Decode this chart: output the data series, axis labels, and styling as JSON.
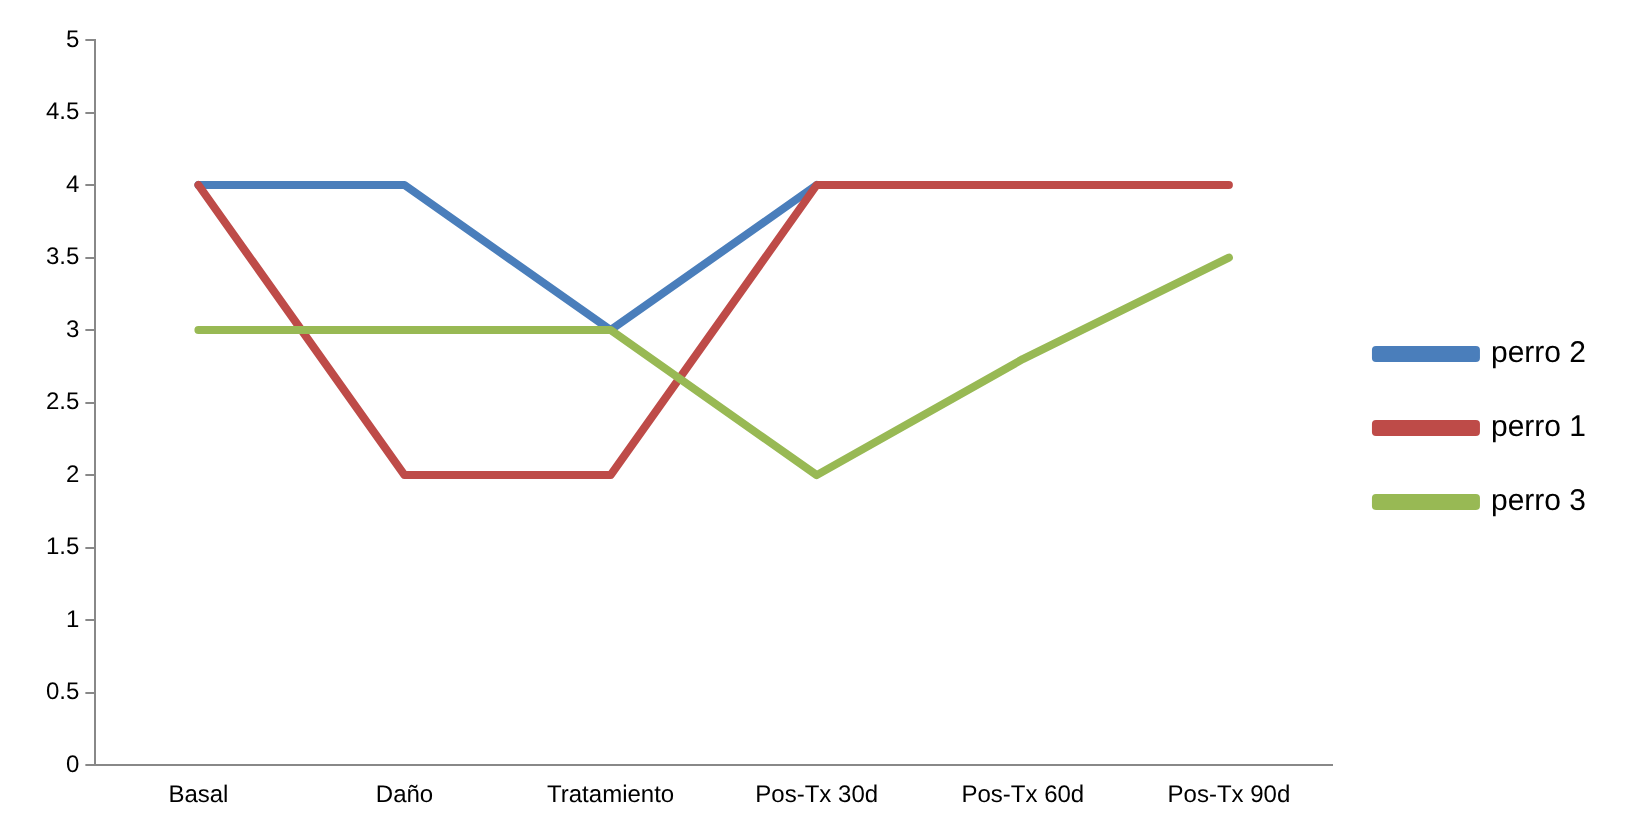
{
  "chart_data": {
    "type": "line",
    "categories": [
      "Basal",
      "Daño",
      "Tratamiento",
      "Pos-Tx 30d",
      "Pos-Tx 60d",
      "Pos-Tx 90d"
    ],
    "series": [
      {
        "name": "perro 2",
        "color": "#4a7ebb",
        "values": [
          4,
          4,
          3,
          4,
          null,
          null
        ]
      },
      {
        "name": "perro 1",
        "color": "#be4b48",
        "values": [
          4,
          2,
          2,
          4,
          4,
          4
        ]
      },
      {
        "name": "perro 3",
        "color": "#98b954",
        "values": [
          3,
          3,
          3,
          2,
          2.8,
          3.5
        ]
      }
    ],
    "ylim": [
      0,
      5
    ],
    "yticks": [
      0,
      0.5,
      1,
      1.5,
      2,
      2.5,
      3,
      3.5,
      4,
      4.5,
      5
    ],
    "grid": false,
    "legend": "right",
    "marker": "none",
    "line_style": "solid"
  }
}
